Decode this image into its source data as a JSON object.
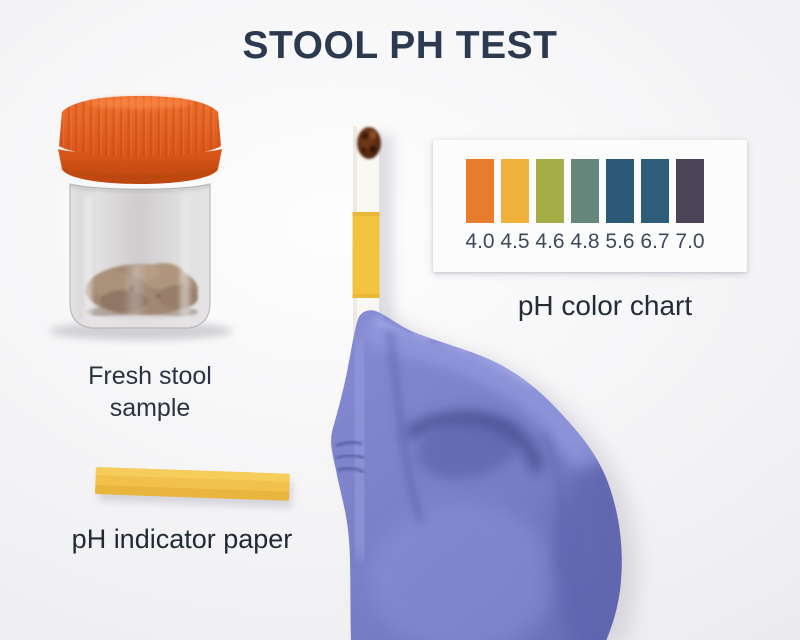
{
  "title": "STOOL PH TEST",
  "labels": {
    "sample": "Fresh stool sample",
    "indicator_paper": "pH indicator paper"
  },
  "ph_chart": {
    "caption": "pH color chart",
    "entries": [
      {
        "ph": "4.0",
        "color": "#e67c2d"
      },
      {
        "ph": "4.5",
        "color": "#f1b23d"
      },
      {
        "ph": "4.6",
        "color": "#a5ad48"
      },
      {
        "ph": "4.8",
        "color": "#65877b"
      },
      {
        "ph": "5.6",
        "color": "#2c5a76"
      },
      {
        "ph": "6.7",
        "color": "#2e5d79"
      },
      {
        "ph": "7.0",
        "color": "#4b4356"
      }
    ]
  },
  "scene": {
    "background_color": "#f1f1f3",
    "title_color": "#2c3a4f",
    "glove_color": "#7b80c9",
    "container_cap_color": "#e05a1c",
    "container_body_color": "#d8d4d6",
    "stool_color": "#7c5a3f",
    "test_strip_paper_color": "#faf8f3",
    "test_strip_reagent_color": "#f3c23e",
    "indicator_paper_color": "#f2c14b",
    "stool_smear_color": "#54290f"
  }
}
